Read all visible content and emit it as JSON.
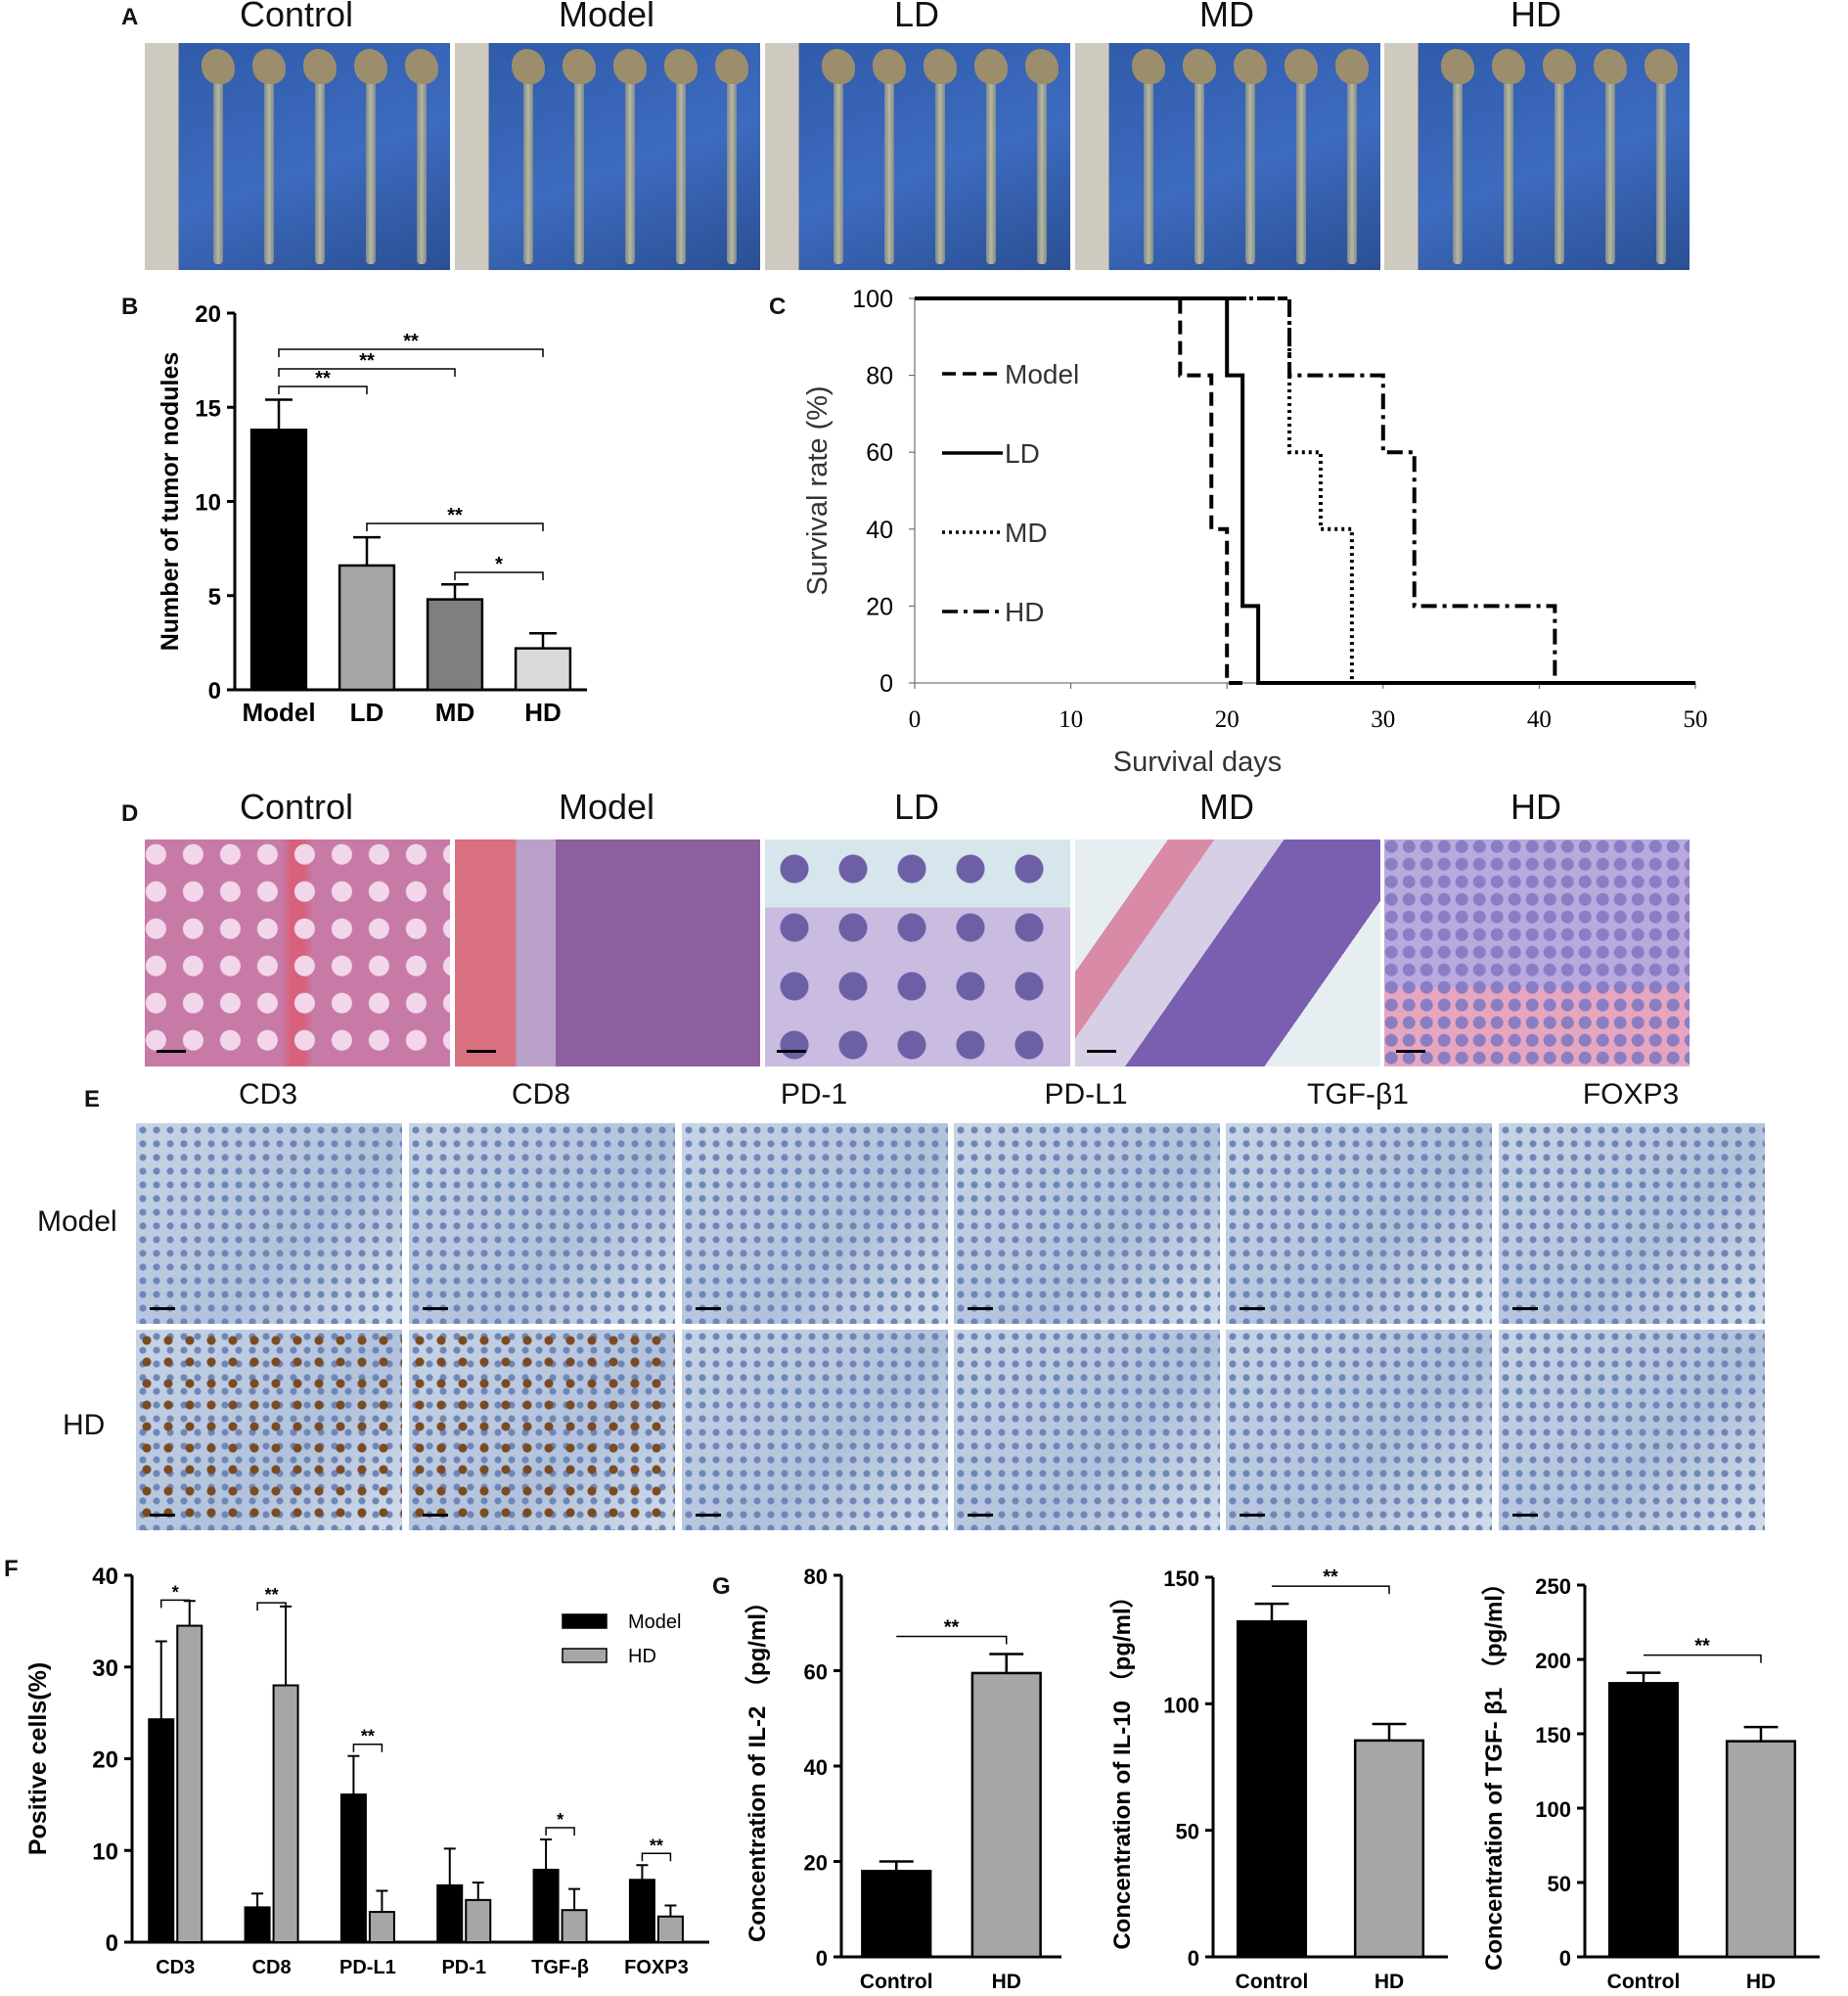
{
  "panel_a": {
    "letter": "A",
    "titles": [
      "Control",
      "Model",
      "LD",
      "MD",
      "HD"
    ]
  },
  "panel_d": {
    "letter": "D",
    "titles": [
      "Control",
      "Model",
      "LD",
      "MD",
      "HD"
    ]
  },
  "panel_e": {
    "letter": "E",
    "stains": [
      "CD3",
      "CD8",
      "PD-1",
      "PD-L1",
      "TGF-β1",
      "FOXP3"
    ],
    "rows": [
      "Model",
      "HD"
    ]
  },
  "colors": {
    "bar_black": "#000000",
    "bar_gray": "#a6a6a6",
    "bar_dark_gray": "#7f7f7f",
    "bar_light_gray": "#d9d9d9",
    "photo_blue": "#2e5aa8",
    "he_pink": "#c77aa6",
    "ihc_blue": "#b9c8de"
  },
  "chart_data": [
    {
      "id": "B",
      "letter": "B",
      "type": "bar",
      "categories": [
        "Model",
        "LD",
        "MD",
        "HD"
      ],
      "values": [
        13.8,
        6.6,
        4.8,
        2.2
      ],
      "errors": [
        1.6,
        1.5,
        0.8,
        0.8
      ],
      "colors": [
        "#000000",
        "#a6a6a6",
        "#7f7f7f",
        "#d9d9d9"
      ],
      "ylabel": "Number of tumor nodules",
      "ylim": [
        0,
        20
      ],
      "yticks": [
        0,
        5,
        10,
        15,
        20
      ],
      "significance": [
        {
          "from": 0,
          "to": 3,
          "label": "**"
        },
        {
          "from": 0,
          "to": 2,
          "label": "**"
        },
        {
          "from": 0,
          "to": 1,
          "label": "**"
        },
        {
          "from": 1,
          "to": 3,
          "label": "**"
        },
        {
          "from": 2,
          "to": 3,
          "label": "*"
        }
      ]
    },
    {
      "id": "C",
      "letter": "C",
      "type": "line",
      "xlabel": "Survival days",
      "ylabel": "Survival rate (%)",
      "xlim": [
        0,
        50
      ],
      "ylim": [
        0,
        100
      ],
      "xticks": [
        0,
        10,
        20,
        30,
        40,
        50
      ],
      "yticks": [
        0,
        20,
        40,
        60,
        80,
        100
      ],
      "legend_position": "left",
      "series": [
        {
          "name": "Model",
          "dash": "dashed",
          "points": [
            [
              0,
              100
            ],
            [
              17,
              100
            ],
            [
              17,
              80
            ],
            [
              19,
              80
            ],
            [
              19,
              40
            ],
            [
              20,
              40
            ],
            [
              20,
              0
            ],
            [
              21,
              0
            ]
          ]
        },
        {
          "name": "LD",
          "dash": "solid",
          "points": [
            [
              0,
              100
            ],
            [
              20,
              100
            ],
            [
              20,
              80
            ],
            [
              21,
              80
            ],
            [
              21,
              20
            ],
            [
              22,
              20
            ],
            [
              22,
              0
            ],
            [
              50,
              0
            ]
          ]
        },
        {
          "name": "MD",
          "dash": "dotted",
          "points": [
            [
              0,
              100
            ],
            [
              24,
              100
            ],
            [
              24,
              60
            ],
            [
              26,
              60
            ],
            [
              26,
              40
            ],
            [
              28,
              40
            ],
            [
              28,
              0
            ]
          ]
        },
        {
          "name": "HD",
          "dash": "dashdot",
          "points": [
            [
              0,
              100
            ],
            [
              24,
              100
            ],
            [
              24,
              80
            ],
            [
              30,
              80
            ],
            [
              30,
              60
            ],
            [
              32,
              60
            ],
            [
              32,
              20
            ],
            [
              41,
              20
            ],
            [
              41,
              0
            ]
          ]
        }
      ]
    },
    {
      "id": "F",
      "letter": "F",
      "type": "bar",
      "categories": [
        "CD3",
        "CD8",
        "PD-L1",
        "PD-1",
        "TGF-β",
        "FOXP3"
      ],
      "ylabel": "Positive cells(%)",
      "ylim": [
        0,
        40
      ],
      "yticks": [
        0,
        10,
        20,
        30,
        40
      ],
      "legend_position": "top-right",
      "series": [
        {
          "name": "Model",
          "color": "#000000",
          "values": [
            24.3,
            3.8,
            16.1,
            6.2,
            7.9,
            6.8
          ],
          "errors": [
            8.5,
            1.5,
            4.2,
            4.0,
            3.3,
            1.6
          ]
        },
        {
          "name": "HD",
          "color": "#a6a6a6",
          "values": [
            34.5,
            28.0,
            3.3,
            4.6,
            3.5,
            2.8
          ],
          "errors": [
            2.7,
            8.6,
            2.3,
            1.9,
            2.3,
            1.2
          ]
        }
      ],
      "significance": [
        "*",
        "**",
        "**",
        "",
        "*",
        "**"
      ]
    },
    {
      "id": "G1",
      "letter": "G",
      "type": "bar",
      "categories": [
        "Control",
        "HD"
      ],
      "values": [
        18.0,
        59.5
      ],
      "errors": [
        2.0,
        4.0
      ],
      "colors": [
        "#000000",
        "#a6a6a6"
      ],
      "ylabel": "Concentration of IL-2 （pg/ml）",
      "ylim": [
        0,
        80
      ],
      "yticks": [
        0,
        20,
        40,
        60,
        80
      ],
      "significance": "**"
    },
    {
      "id": "G2",
      "letter": "",
      "type": "bar",
      "categories": [
        "Control",
        "HD"
      ],
      "values": [
        132.5,
        85.5
      ],
      "errors": [
        7.0,
        6.5
      ],
      "colors": [
        "#000000",
        "#a6a6a6"
      ],
      "ylabel": "Concentration of IL-10 （pg/ml）",
      "ylim": [
        0,
        150
      ],
      "yticks": [
        0,
        50,
        100,
        150
      ],
      "significance": "**"
    },
    {
      "id": "G3",
      "letter": "",
      "type": "bar",
      "categories": [
        "Control",
        "HD"
      ],
      "values": [
        184.0,
        145.0
      ],
      "errors": [
        7.0,
        9.5
      ],
      "colors": [
        "#000000",
        "#a6a6a6"
      ],
      "ylabel": "Concentration of TGF- β1 （pg/ml）",
      "ylim": [
        0,
        250
      ],
      "yticks": [
        0,
        50,
        100,
        150,
        200,
        250
      ],
      "significance": "**"
    }
  ]
}
